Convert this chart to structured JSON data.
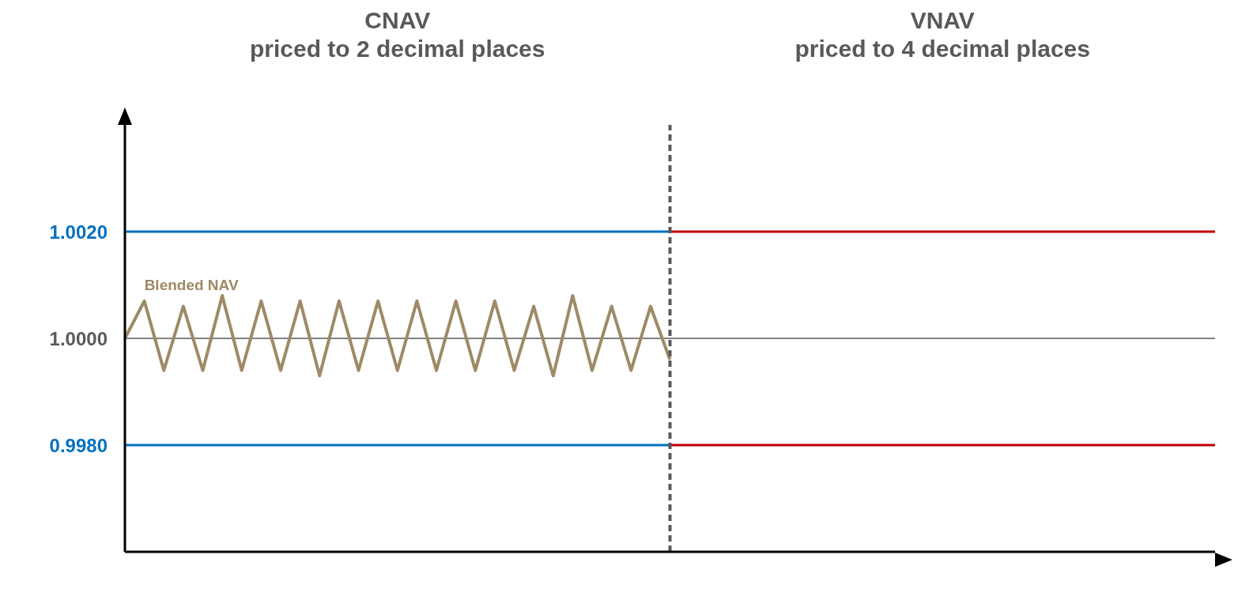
{
  "chart_data": {
    "type": "line",
    "annotations": [
      "CNAV\npriced to 2 decimal places",
      "VNAV\npriced to 4 decimal places"
    ],
    "categories": [
      null,
      null,
      null,
      null,
      null,
      null,
      null,
      null,
      null,
      null,
      null,
      null,
      null,
      null,
      null,
      null,
      null,
      null,
      null,
      null,
      null,
      null,
      null,
      null,
      null,
      null,
      null,
      null,
      null,
      null,
      null,
      null,
      null,
      null,
      null,
      null,
      null,
      null,
      null,
      null,
      null,
      null,
      null,
      null,
      null,
      null,
      null,
      null,
      null,
      null,
      null,
      null,
      null,
      null,
      null,
      null,
      null
    ],
    "ylim": [
      0.996,
      1.004
    ],
    "yticks": [
      {
        "value": 1.002,
        "label": "1.0020"
      },
      {
        "value": 1.0,
        "label": "1.0000"
      },
      {
        "value": 0.998,
        "label": "0.9980"
      }
    ],
    "tick_labels": "y",
    "grid": false,
    "legend": false,
    "marker": "none",
    "line_style": "solid",
    "series": [
      {
        "color": "#595959",
        "values": [
          1.0,
          1.0,
          1.0,
          1.0,
          1.0,
          1.0,
          1.0,
          1.0,
          1.0,
          1.0,
          1.0,
          1.0,
          1.0,
          1.0,
          1.0,
          1.0,
          1.0,
          1.0,
          1.0,
          1.0,
          1.0,
          1.0,
          1.0,
          1.0,
          1.0,
          1.0,
          1.0,
          1.0,
          1.0,
          1.0,
          1.0,
          1.0,
          1.0,
          1.0,
          1.0,
          1.0,
          1.0,
          1.0,
          1.0,
          1.0,
          1.0,
          1.0,
          1.0,
          1.0,
          1.0,
          1.0,
          1.0,
          1.0,
          1.0,
          1.0,
          1.0,
          1.0,
          1.0,
          1.0,
          1.0,
          1.0,
          1.0
        ]
      },
      {
        "color": "#0070c0",
        "values": [
          1.002,
          1.002,
          1.002,
          1.002,
          1.002,
          1.002,
          1.002,
          1.002,
          1.002,
          1.002,
          1.002,
          1.002,
          1.002,
          1.002,
          1.002,
          1.002,
          1.002,
          1.002,
          1.002,
          1.002,
          1.002,
          1.002,
          1.002,
          1.002,
          1.002,
          1.002,
          1.002,
          1.002,
          1.002,
          null,
          null,
          null,
          null,
          null,
          null,
          null,
          null,
          null,
          null,
          null,
          null,
          null,
          null,
          null,
          null,
          null,
          null,
          null,
          null,
          null,
          null,
          null,
          null,
          null,
          null,
          null,
          null
        ]
      },
      {
        "color": "#0070c0",
        "values": [
          0.998,
          0.998,
          0.998,
          0.998,
          0.998,
          0.998,
          0.998,
          0.998,
          0.998,
          0.998,
          0.998,
          0.998,
          0.998,
          0.998,
          0.998,
          0.998,
          0.998,
          0.998,
          0.998,
          0.998,
          0.998,
          0.998,
          0.998,
          0.998,
          0.998,
          0.998,
          0.998,
          0.998,
          0.998,
          null,
          null,
          null,
          null,
          null,
          null,
          null,
          null,
          null,
          null,
          null,
          null,
          null,
          null,
          null,
          null,
          null,
          null,
          null,
          null,
          null,
          null,
          null,
          null,
          null,
          null,
          null,
          null
        ]
      },
      {
        "color": "#c00000",
        "values": [
          null,
          null,
          null,
          null,
          null,
          null,
          null,
          null,
          null,
          null,
          null,
          null,
          null,
          null,
          null,
          null,
          null,
          null,
          null,
          null,
          null,
          null,
          null,
          null,
          null,
          null,
          null,
          null,
          1.002,
          1.002,
          1.002,
          1.002,
          1.002,
          1.002,
          1.002,
          1.002,
          1.002,
          1.002,
          1.002,
          1.002,
          1.002,
          1.002,
          1.002,
          1.002,
          1.002,
          1.002,
          1.002,
          1.002,
          1.002,
          1.002,
          1.002,
          1.002,
          1.002,
          1.002,
          1.002,
          1.002,
          1.002
        ]
      },
      {
        "color": "#c00000",
        "values": [
          null,
          null,
          null,
          null,
          null,
          null,
          null,
          null,
          null,
          null,
          null,
          null,
          null,
          null,
          null,
          null,
          null,
          null,
          null,
          null,
          null,
          null,
          null,
          null,
          null,
          null,
          null,
          null,
          0.998,
          0.998,
          0.998,
          0.998,
          0.998,
          0.998,
          0.998,
          0.998,
          0.998,
          0.998,
          0.998,
          0.998,
          0.998,
          0.998,
          0.998,
          0.998,
          0.998,
          0.998,
          0.998,
          0.998,
          0.998,
          0.998,
          0.998,
          0.998,
          0.998,
          0.998,
          0.998,
          0.998,
          0.998
        ]
      },
      {
        "name": "Blended NAV",
        "color": "#9e8a66",
        "values": [
          1.0,
          1.0007,
          0.9994,
          1.0006,
          0.9994,
          1.0008,
          0.9994,
          1.0007,
          0.9994,
          1.0007,
          0.9993,
          1.0007,
          0.9994,
          1.0007,
          0.9994,
          1.0007,
          0.9994,
          1.0007,
          0.9994,
          1.0007,
          0.9994,
          1.0006,
          0.9993,
          1.0008,
          0.9994,
          1.0006,
          0.9994,
          1.0006,
          0.9996,
          null,
          null,
          null,
          null,
          null,
          null,
          null,
          null,
          null,
          null,
          null,
          null,
          null,
          null,
          null,
          null,
          null,
          null,
          null,
          null,
          null,
          null,
          null,
          null,
          null,
          null,
          null,
          null
        ]
      }
    ]
  }
}
